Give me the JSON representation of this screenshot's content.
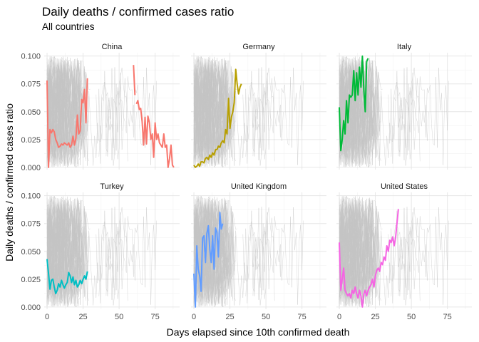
{
  "chart_data": {
    "type": "line",
    "title": "Daily deaths / confirmed cases ratio",
    "subtitle": "All countries",
    "xlabel": "Days elapsed since 10th confirmed death",
    "ylabel": "Daily deaths / confirmed cases ratio",
    "xlim": [
      -2,
      92
    ],
    "ylim": [
      -0.002,
      0.103
    ],
    "x_ticks": [
      0,
      25,
      50,
      75
    ],
    "y_ticks": [
      0.0,
      0.025,
      0.05,
      0.075,
      0.1
    ],
    "y_tick_labels": [
      "0.000",
      "0.025",
      "0.050",
      "0.075",
      "0.100"
    ],
    "background_series_color": "#c4c4c4",
    "grid": true,
    "legend": "none",
    "facet_layout": "2 rows x 3 columns, shared axes",
    "panels": [
      {
        "name": "China",
        "color": "#F8766D",
        "segments": [
          {
            "x": [
              0,
              1,
              2,
              3,
              4,
              5,
              6,
              7,
              8,
              9,
              10,
              11,
              12,
              13,
              14,
              15,
              16,
              17,
              18,
              19,
              20,
              21,
              22,
              23,
              24,
              25,
              26,
              27,
              28
            ],
            "y": [
              0.078,
              0.0,
              0.034,
              0.031,
              0.034,
              0.032,
              0.025,
              0.022,
              0.018,
              0.019,
              0.021,
              0.02,
              0.022,
              0.021,
              0.02,
              0.022,
              0.018,
              0.02,
              0.028,
              0.02,
              0.026,
              0.047,
              0.03,
              0.033,
              0.061,
              0.058,
              0.07,
              0.04,
              0.08
            ]
          },
          {
            "x": [
              60,
              61
            ],
            "y": [
              0.092,
              0.065
            ]
          },
          {
            "x": [
              62,
              63,
              64,
              65,
              66,
              67,
              68,
              69,
              70,
              71,
              72,
              73,
              74,
              75,
              76,
              77,
              78,
              79,
              80,
              81,
              82,
              83,
              84,
              85,
              86,
              87,
              88
            ],
            "y": [
              0.057,
              0.06,
              0.052,
              0.053,
              0.041,
              0.02,
              0.045,
              0.021,
              0.046,
              0.04,
              0.025,
              0.03,
              0.009,
              0.04,
              0.025,
              0.03,
              0.022,
              0.02,
              0.018,
              0.03,
              0.018,
              0.02,
              0.0,
              0.008,
              0.02,
              0.002,
              0.0
            ]
          }
        ]
      },
      {
        "name": "Germany",
        "color": "#B79F00",
        "segments": [
          {
            "x": [
              0,
              1,
              2,
              3,
              4,
              5,
              6,
              7,
              8,
              9,
              10,
              11,
              12,
              13,
              14,
              15,
              16,
              17,
              18,
              19,
              20,
              21,
              22,
              23,
              24,
              25,
              26,
              27,
              28,
              29,
              30,
              31,
              32,
              33
            ],
            "y": [
              0.002,
              0.0,
              0.001,
              0.003,
              0.001,
              0.005,
              0.005,
              0.004,
              0.008,
              0.009,
              0.007,
              0.011,
              0.009,
              0.013,
              0.011,
              0.016,
              0.016,
              0.019,
              0.018,
              0.022,
              0.024,
              0.022,
              0.034,
              0.03,
              0.062,
              0.035,
              0.045,
              0.05,
              0.058,
              0.088,
              0.075,
              0.066,
              0.072,
              0.075
            ]
          }
        ]
      },
      {
        "name": "Italy",
        "color": "#00BA38",
        "segments": [
          {
            "x": [
              0,
              1,
              2,
              3,
              4,
              5,
              6,
              7,
              8,
              9,
              10,
              11,
              12,
              13,
              14,
              15,
              16,
              17,
              18,
              19,
              20
            ],
            "y": [
              0.054,
              0.015,
              0.025,
              0.042,
              0.03,
              0.06,
              0.04,
              0.065,
              0.063,
              0.065,
              0.087,
              0.06,
              0.085,
              0.065,
              0.09,
              0.072,
              0.1,
              0.07,
              0.05,
              0.095,
              0.098
            ]
          }
        ]
      },
      {
        "name": "Turkey",
        "color": "#00BFC4",
        "segments": [
          {
            "x": [
              0,
              1,
              2,
              3,
              4,
              5,
              6,
              7,
              8,
              9,
              10,
              11,
              12,
              13,
              14,
              15,
              16,
              17,
              18,
              19,
              20,
              21,
              22,
              23,
              24,
              25,
              26,
              27,
              28
            ],
            "y": [
              0.043,
              0.03,
              0.016,
              0.024,
              0.025,
              0.018,
              0.012,
              0.015,
              0.021,
              0.018,
              0.024,
              0.02,
              0.017,
              0.02,
              0.022,
              0.031,
              0.028,
              0.022,
              0.027,
              0.02,
              0.024,
              0.018,
              0.02,
              0.024,
              0.021,
              0.025,
              0.028,
              0.025,
              0.032
            ]
          }
        ]
      },
      {
        "name": "United Kingdom",
        "color": "#619CFF",
        "segments": [
          {
            "x": [
              0,
              1,
              2,
              3,
              4,
              5,
              6,
              7,
              8,
              9,
              10,
              11,
              12,
              13,
              14,
              15,
              16,
              17,
              18,
              19,
              20
            ],
            "y": [
              0.03,
              0.0,
              0.055,
              0.034,
              0.028,
              0.014,
              0.062,
              0.064,
              0.04,
              0.066,
              0.073,
              0.052,
              0.04,
              0.064,
              0.034,
              0.071,
              0.067,
              0.045,
              0.085,
              0.07,
              0.075
            ]
          }
        ]
      },
      {
        "name": "United States",
        "color": "#F564E3",
        "segments": [
          {
            "x": [
              0,
              1,
              2,
              3,
              4,
              5,
              6,
              7,
              8,
              9,
              10,
              11,
              12,
              13,
              14,
              15,
              16,
              17,
              18,
              19,
              20,
              21,
              22,
              23,
              24,
              25,
              26,
              27,
              28,
              29,
              30,
              31,
              32,
              33,
              34,
              35,
              36,
              37,
              38,
              39,
              40,
              41
            ],
            "y": [
              0.058,
              0.015,
              0.025,
              0.035,
              0.015,
              0.012,
              0.01,
              0.012,
              0.008,
              0.015,
              0.012,
              0.018,
              0.012,
              0.008,
              0.015,
              0.01,
              0.0,
              0.012,
              0.015,
              0.01,
              0.015,
              0.018,
              0.02,
              0.025,
              0.018,
              0.028,
              0.033,
              0.035,
              0.032,
              0.04,
              0.038,
              0.045,
              0.042,
              0.055,
              0.05,
              0.06,
              0.058,
              0.063,
              0.055,
              0.062,
              0.075,
              0.088
            ]
          }
        ]
      }
    ]
  }
}
